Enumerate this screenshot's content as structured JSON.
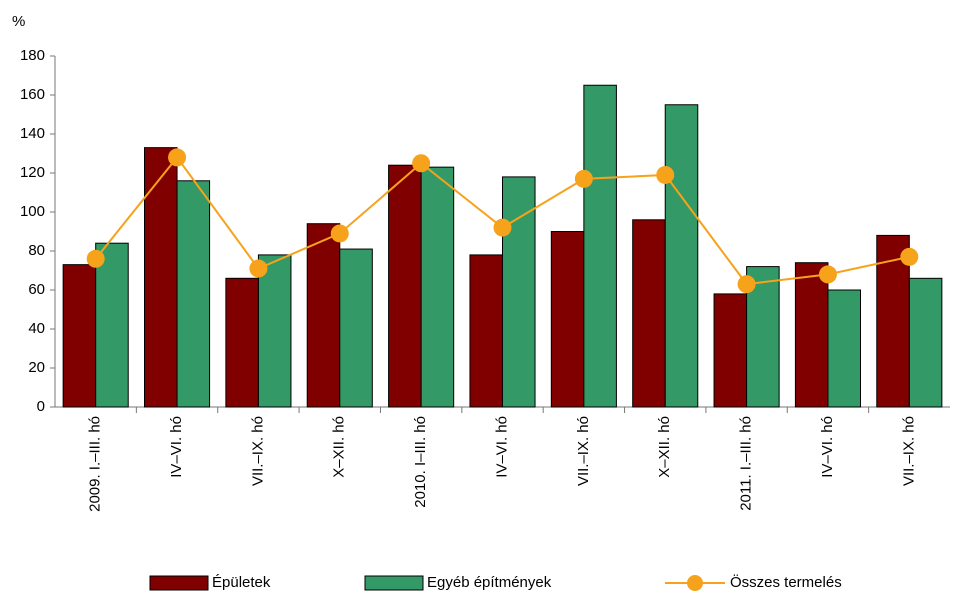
{
  "chart_data": {
    "type": "bar_line",
    "y_label": "%",
    "categories": [
      "2009. I.–III. hó",
      "IV–VI. hó",
      "VII.–IX. hó",
      "X–XII. hó",
      "2010. I–III. hó",
      "IV–VI. hó",
      "VII.–IX. hó",
      "X–XII. hó",
      "2011.  I.–III. hó",
      "IV–VI. hó",
      "VII.–IX. hó"
    ],
    "series": [
      {
        "name": "Épületek",
        "type": "bar",
        "color": "#800000",
        "values": [
          73,
          133,
          66,
          94,
          124,
          78,
          90,
          96,
          58,
          74,
          88
        ]
      },
      {
        "name": "Egyéb építmények",
        "type": "bar",
        "color": "#339966",
        "values": [
          84,
          116,
          78,
          81,
          123,
          118,
          165,
          155,
          72,
          60,
          66
        ]
      },
      {
        "name": "Összes termelés",
        "type": "line",
        "color": "#f7a21b",
        "values": [
          76,
          128,
          71,
          89,
          125,
          92,
          117,
          119,
          63,
          68,
          77
        ]
      }
    ],
    "ylim": [
      0,
      180
    ],
    "yticks": [
      0,
      20,
      40,
      60,
      80,
      100,
      120,
      140,
      160,
      180
    ],
    "grid": false,
    "legend": "bottom"
  }
}
